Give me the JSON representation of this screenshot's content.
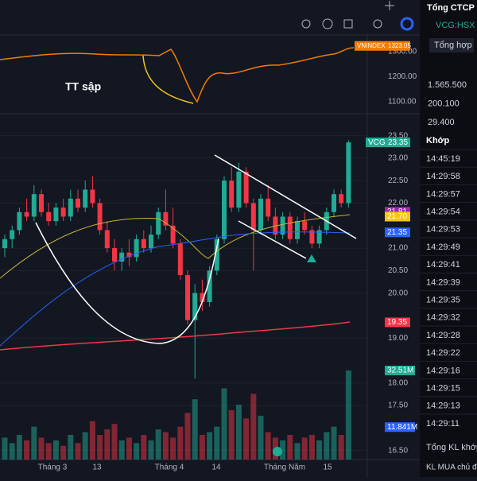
{
  "chart_data": {
    "type": "candlestick",
    "annotation": "TT sập",
    "symbol_tag": "VCG",
    "last_price": {
      "value": 23.35,
      "label": "23.35"
    },
    "index_tag": "VNINDEX",
    "index_last": {
      "value": 1323.05,
      "label": "1323.05"
    },
    "index_ticks": [
      {
        "value": 1300,
        "label": "1300.00"
      },
      {
        "value": 1200,
        "label": "1200.00"
      },
      {
        "value": 1100,
        "label": "1100.00"
      }
    ],
    "ylim": [
      16.3,
      23.9
    ],
    "yticks": [
      {
        "value": 23.5,
        "label": "23.50"
      },
      {
        "value": 23,
        "label": "23.00"
      },
      {
        "value": 22.5,
        "label": "22.50"
      },
      {
        "value": 22,
        "label": "22.00"
      },
      {
        "value": 21,
        "label": "21.00"
      },
      {
        "value": 20.5,
        "label": "20.50"
      },
      {
        "value": 20,
        "label": "20.00"
      },
      {
        "value": 19,
        "label": "19.00"
      },
      {
        "value": 18,
        "label": "18.00"
      },
      {
        "value": 17.5,
        "label": "17.50"
      },
      {
        "value": 16.5,
        "label": "16.50"
      }
    ],
    "ma_tags": [
      {
        "value": 21.81,
        "label": "21.81",
        "color": "#9c27b0"
      },
      {
        "value": 21.7,
        "label": "21.70",
        "color": "#f5c518"
      },
      {
        "value": 21.35,
        "label": "21.35",
        "color": "#2962ff"
      },
      {
        "value": 19.35,
        "label": "19.35",
        "color": "#f23645"
      }
    ],
    "volume_tags": [
      {
        "value": 32.51,
        "label": "32.51M"
      },
      {
        "value": 11.841,
        "label": "11.841M"
      }
    ],
    "x_labels": [
      "Tháng 3",
      "13",
      "Tháng 4",
      "14",
      "Tháng Năm",
      "15"
    ],
    "up_color": "#22ab94",
    "down_color": "#f23645",
    "candles": [
      [
        21.0,
        21.3,
        20.8,
        21.2
      ],
      [
        21.2,
        21.5,
        21.0,
        21.4
      ],
      [
        21.4,
        21.9,
        21.3,
        21.8
      ],
      [
        21.8,
        22.1,
        21.6,
        21.7
      ],
      [
        21.7,
        22.4,
        21.6,
        22.2
      ],
      [
        22.2,
        22.3,
        21.7,
        21.8
      ],
      [
        21.8,
        22.0,
        21.5,
        21.6
      ],
      [
        21.6,
        22.0,
        21.5,
        21.9
      ],
      [
        21.9,
        22.1,
        21.6,
        21.7
      ],
      [
        21.7,
        22.3,
        21.6,
        22.1
      ],
      [
        22.1,
        22.3,
        21.8,
        21.9
      ],
      [
        21.9,
        22.5,
        21.8,
        22.3
      ],
      [
        22.3,
        22.6,
        21.9,
        22.0
      ],
      [
        22.0,
        22.1,
        21.3,
        21.4
      ],
      [
        21.4,
        21.6,
        20.9,
        21.0
      ],
      [
        21.0,
        21.2,
        20.5,
        20.7
      ],
      [
        20.7,
        21.0,
        20.5,
        20.9
      ],
      [
        20.9,
        21.2,
        20.6,
        20.8
      ],
      [
        20.8,
        21.3,
        20.7,
        21.2
      ],
      [
        21.2,
        21.4,
        20.9,
        21.0
      ],
      [
        21.0,
        21.5,
        20.9,
        21.3
      ],
      [
        21.3,
        21.9,
        21.2,
        21.8
      ],
      [
        21.8,
        22.3,
        21.4,
        21.5
      ],
      [
        21.5,
        21.9,
        21.0,
        21.1
      ],
      [
        21.1,
        21.2,
        20.3,
        20.4
      ],
      [
        20.4,
        20.5,
        19.3,
        19.4
      ],
      [
        19.4,
        20.2,
        18.1,
        20.0
      ],
      [
        20.0,
        20.3,
        19.6,
        19.8
      ],
      [
        19.8,
        20.6,
        19.7,
        20.5
      ],
      [
        20.5,
        21.3,
        20.4,
        21.2
      ],
      [
        21.2,
        22.6,
        21.1,
        22.5
      ],
      [
        22.5,
        22.8,
        21.8,
        21.9
      ],
      [
        21.9,
        22.9,
        21.8,
        22.7
      ],
      [
        22.7,
        22.8,
        21.9,
        22.0
      ],
      [
        22.0,
        22.1,
        20.5,
        21.4
      ],
      [
        21.4,
        22.2,
        21.3,
        22.1
      ],
      [
        22.1,
        22.4,
        21.6,
        21.7
      ],
      [
        21.7,
        21.9,
        21.2,
        21.3
      ],
      [
        21.3,
        21.8,
        21.2,
        21.7
      ],
      [
        21.7,
        21.8,
        21.1,
        21.2
      ],
      [
        21.2,
        21.7,
        21.1,
        21.6
      ],
      [
        21.6,
        21.8,
        21.3,
        21.4
      ],
      [
        21.4,
        21.5,
        21.0,
        21.1
      ],
      [
        21.1,
        21.5,
        21.0,
        21.4
      ],
      [
        21.4,
        21.9,
        21.3,
        21.8
      ],
      [
        21.8,
        22.3,
        21.7,
        22.2
      ],
      [
        22.2,
        22.3,
        21.9,
        22.0
      ],
      [
        22.0,
        23.4,
        21.9,
        23.35
      ]
    ],
    "volumes": [
      8,
      6,
      9,
      7,
      12,
      8,
      6,
      7,
      5,
      9,
      6,
      10,
      14,
      9,
      11,
      13,
      7,
      8,
      6,
      9,
      7,
      11,
      10,
      8,
      12,
      17,
      22,
      9,
      10,
      12,
      26,
      18,
      20,
      15,
      24,
      16,
      10,
      8,
      7,
      9,
      6,
      8,
      9,
      7,
      10,
      12,
      9,
      32.51
    ]
  },
  "panel": {
    "title": "Tổng CTCP",
    "symbol": "VCG:HSX",
    "tab": "Tổng hợp",
    "stats": [
      "1.565.500",
      "200.100",
      "29.400"
    ],
    "section": "Khớp",
    "times": [
      "14:45:19",
      "14:29:58",
      "14:29:57",
      "14:29:54",
      "14:29:53",
      "14:29:49",
      "14:29:41",
      "14:29:39",
      "14:29:35",
      "14:29:32",
      "14:29:28",
      "14:29:22",
      "14:29:16",
      "14:29:15",
      "14:29:13",
      "14:29:11"
    ],
    "footer": [
      "Tổng KL khớp",
      "KL MUA chủ độ"
    ]
  }
}
